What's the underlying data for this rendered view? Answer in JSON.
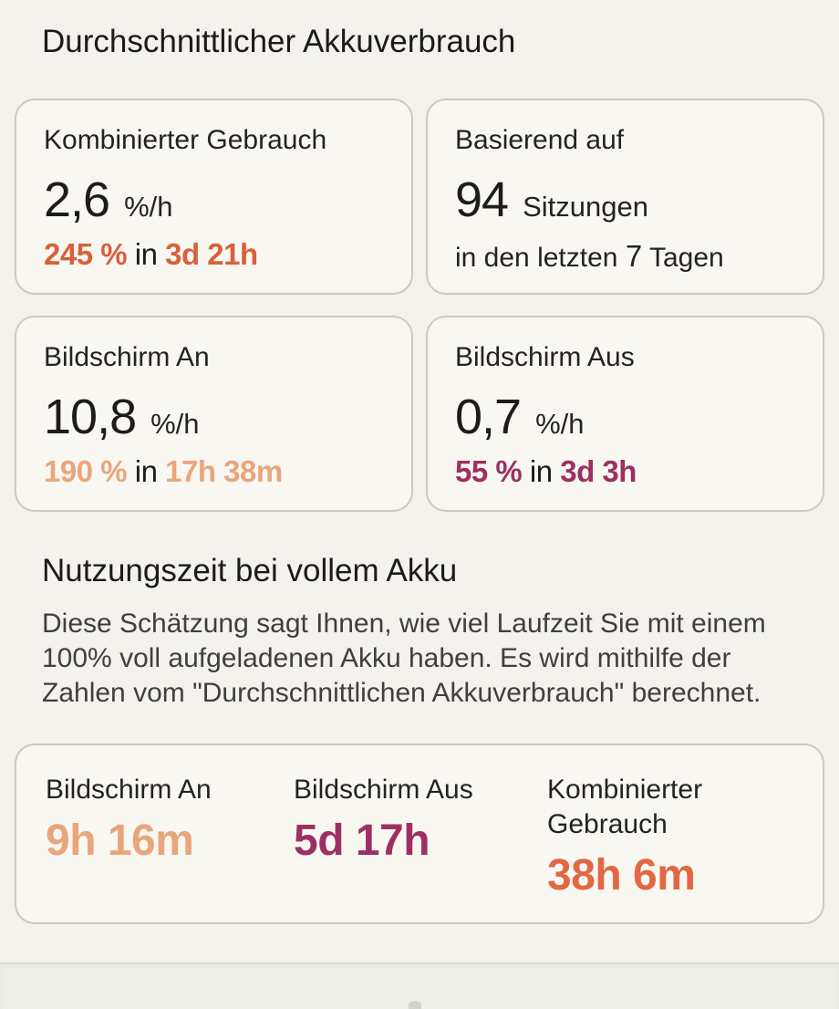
{
  "page": {
    "title": "Durchschnittlicher Akkuverbrauch"
  },
  "theme": {
    "background": "#f4f2ec",
    "card_background": "#f9f7f1",
    "card_border": "#cbc9c1",
    "text_primary": "#1d1c18",
    "text_secondary": "#403f3c",
    "accent_combined": "#d8603b",
    "accent_screen_on": "#e9a67b",
    "accent_screen_off": "#9d2f63",
    "accent_combined_total": "#e26742"
  },
  "stat_cards": {
    "combined": {
      "label": "Kombinierter Gebrauch",
      "value": "2,6",
      "unit": "%/h",
      "detail_amount": "245 %",
      "detail_connector": "in",
      "detail_duration": "3d 21h",
      "accent": "#d8603b"
    },
    "sessions": {
      "label": "Basierend auf",
      "value": "94",
      "unit": "Sitzungen",
      "line2_prefix": "in den letzten",
      "line2_value": "7",
      "line2_suffix": "Tagen"
    },
    "screen_on": {
      "label": "Bildschirm An",
      "value": "10,8",
      "unit": "%/h",
      "detail_amount": "190 %",
      "detail_connector": "in",
      "detail_duration": "17h 38m",
      "accent": "#e9a67b"
    },
    "screen_off": {
      "label": "Bildschirm Aus",
      "value": "0,7",
      "unit": "%/h",
      "detail_amount": "55 %",
      "detail_connector": "in",
      "detail_duration": "3d 3h",
      "accent": "#9d2f63"
    }
  },
  "usage_estimate": {
    "title": "Nutzungszeit bei vollem Akku",
    "description": "Diese Schätzung sagt Ihnen, wie viel Laufzeit Sie mit einem 100% voll aufgeladenen Akku haben. Es wird mithilfe der Zahlen vom \"Durchschnittlichen Akkuverbrauch\" berechnet.",
    "columns": [
      {
        "label": "Bildschirm An",
        "value": "9h 16m",
        "accent": "#e9a67b"
      },
      {
        "label": "Bildschirm Aus",
        "value": "5d 17h",
        "accent": "#9d2f63"
      },
      {
        "label": "Kombinierter Gebrauch",
        "value": "38h 6m",
        "accent": "#e26742"
      }
    ]
  }
}
